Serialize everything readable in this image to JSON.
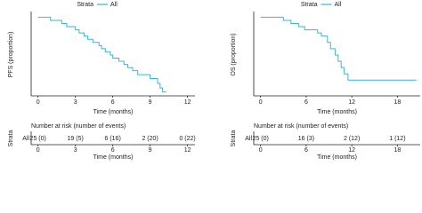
{
  "chart_data": [
    {
      "type": "step",
      "legend_title": "Strata",
      "ylabel": "PFS (proportion)",
      "xlabel": "Time (months)",
      "xlim": [
        -0.55,
        12.6
      ],
      "ylim": [
        0,
        1.05
      ],
      "xticks": [
        0,
        3,
        6,
        9,
        12
      ],
      "series": [
        {
          "name": "All",
          "color": "#3cb4d6",
          "x": [
            0,
            1.0,
            1.9,
            2.3,
            3.0,
            3.3,
            3.7,
            4.0,
            4.4,
            4.9,
            5.1,
            5.4,
            5.8,
            6.0,
            6.5,
            6.9,
            7.2,
            7.6,
            8.0,
            9.0,
            9.6,
            9.8,
            10.0,
            10.3
          ],
          "values": [
            1.0,
            0.96,
            0.92,
            0.88,
            0.84,
            0.8,
            0.76,
            0.72,
            0.68,
            0.64,
            0.6,
            0.56,
            0.52,
            0.48,
            0.44,
            0.4,
            0.36,
            0.32,
            0.27,
            0.22,
            0.16,
            0.1,
            0.05,
            0.05
          ]
        }
      ],
      "risk_table": {
        "title": "Number at risk (number of events)",
        "labels": [
          "25 (0)",
          "19 (5)",
          "6 (16)",
          "2 (20)",
          "0 (22)"
        ]
      }
    },
    {
      "type": "step",
      "legend_title": "Strata",
      "ylabel": "OS (proportion)",
      "xlabel": "Time (months)",
      "xlim": [
        -0.9,
        21
      ],
      "ylim": [
        0,
        1.05
      ],
      "xticks": [
        0,
        6,
        12,
        18
      ],
      "series": [
        {
          "name": "All",
          "color": "#3cb4d6",
          "x": [
            0,
            3.0,
            4.0,
            5.0,
            5.8,
            7.5,
            8.0,
            8.8,
            9.2,
            9.8,
            10.2,
            10.6,
            11.0,
            11.5,
            20.5
          ],
          "values": [
            1.0,
            0.96,
            0.92,
            0.88,
            0.84,
            0.8,
            0.76,
            0.68,
            0.6,
            0.52,
            0.44,
            0.36,
            0.28,
            0.2,
            0.2
          ]
        }
      ],
      "risk_table": {
        "title": "Number at risk (number of events)",
        "labels": [
          "25 (0)",
          "16 (3)",
          "2 (12)",
          "1 (12)"
        ]
      }
    }
  ]
}
